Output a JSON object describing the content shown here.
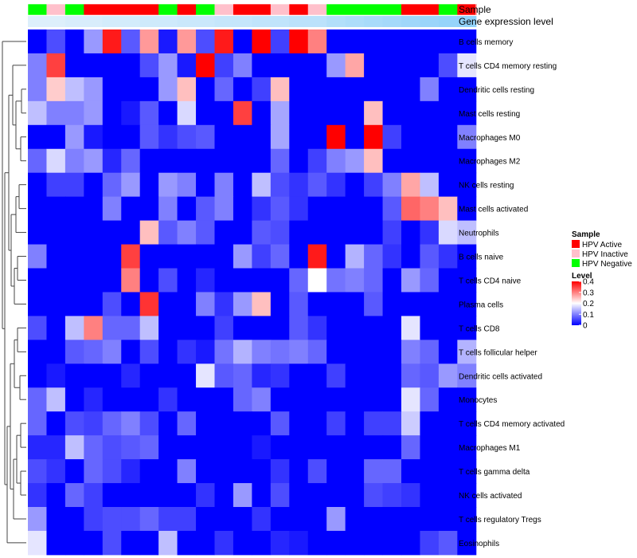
{
  "chart_data": {
    "type": "heatmap",
    "title": "",
    "annotation_labels": {
      "sample": "Sample",
      "gene": "Gene expression level"
    },
    "rows": [
      "B cells memory",
      "T cells CD4 memory resting",
      "Dendritic cells resting",
      "Mast cells resting",
      "Macrophages M0",
      "Macrophages M2",
      "NK cells resting",
      "Mast cells activated",
      "Neutrophils",
      "B cells naive",
      "T cells CD4 naive",
      "Plasma cells",
      "T cells CD8",
      "T cells follicular helper",
      "Dendritic cells activated",
      "Monocytes",
      "T cells CD4 memory activated",
      "Macrophages M1",
      "T cells gamma delta",
      "NK cells activated",
      "T cells regulatory  Tregs",
      "Eosinophils"
    ],
    "sample_annotation": [
      "HPV Negative",
      "HPV Inactive",
      "HPV Negative",
      "HPV Active",
      "HPV Active",
      "HPV Active",
      "HPV Active",
      "HPV Negative",
      "HPV Active",
      "HPV Negative",
      "HPV Inactive",
      "HPV Active",
      "HPV Active",
      "HPV Inactive",
      "HPV Active",
      "HPV Inactive",
      "HPV Negative",
      "HPV Negative",
      "HPV Negative",
      "HPV Negative",
      "HPV Active",
      "HPV Active",
      "HPV Negative",
      "HPV Active"
    ],
    "gene_expression_annotation": [
      0.1,
      0.1,
      0.15,
      0.15,
      0.2,
      0.2,
      0.25,
      0.25,
      0.3,
      0.3,
      0.35,
      0.35,
      0.4,
      0.4,
      0.45,
      0.45,
      0.55,
      0.6,
      0.65,
      0.7,
      0.75,
      0.8,
      0.85,
      0.9
    ],
    "values": [
      [
        0.0,
        0.06,
        0.0,
        0.12,
        0.38,
        0.07,
        0.28,
        0.02,
        0.28,
        0.06,
        0.38,
        0.0,
        0.4,
        0.05,
        0.4,
        0.3,
        0.0,
        0.0,
        0.0,
        0.0,
        0.0,
        0.0,
        0.0,
        0.0
      ],
      [
        0.1,
        0.35,
        0.0,
        0.0,
        0.0,
        0.0,
        0.06,
        0.12,
        0.02,
        0.4,
        0.05,
        0.1,
        0.0,
        0.0,
        0.0,
        0.0,
        0.12,
        0.27,
        0.0,
        0.0,
        0.0,
        0.0,
        0.06,
        0.18
      ],
      [
        0.1,
        0.24,
        0.15,
        0.12,
        0.0,
        0.0,
        0.0,
        0.12,
        0.25,
        0.0,
        0.08,
        0.0,
        0.05,
        0.25,
        0.0,
        0.0,
        0.0,
        0.0,
        0.0,
        0.0,
        0.0,
        0.1,
        0.0,
        0.0
      ],
      [
        0.15,
        0.1,
        0.1,
        0.12,
        0.0,
        0.02,
        0.07,
        0.0,
        0.17,
        0.0,
        0.0,
        0.35,
        0.0,
        0.13,
        0.0,
        0.0,
        0.0,
        0.0,
        0.25,
        0.0,
        0.0,
        0.0,
        0.0,
        0.0
      ],
      [
        0.0,
        0.0,
        0.12,
        0.02,
        0.0,
        0.0,
        0.07,
        0.04,
        0.06,
        0.07,
        0.0,
        0.0,
        0.0,
        0.13,
        0.0,
        0.0,
        0.4,
        0.0,
        0.4,
        0.05,
        0.0,
        0.0,
        0.0,
        0.1
      ],
      [
        0.08,
        0.17,
        0.1,
        0.12,
        0.03,
        0.08,
        0.0,
        0.0,
        0.0,
        0.0,
        0.0,
        0.0,
        0.0,
        0.08,
        0.0,
        0.05,
        0.1,
        0.12,
        0.25,
        0.0,
        0.0,
        0.0,
        0.0,
        0.0
      ],
      [
        0.0,
        0.05,
        0.05,
        0.0,
        0.08,
        0.12,
        0.0,
        0.12,
        0.1,
        0.0,
        0.1,
        0.0,
        0.15,
        0.06,
        0.04,
        0.07,
        0.04,
        0.0,
        0.05,
        0.1,
        0.27,
        0.15,
        0.0,
        0.0
      ],
      [
        0.0,
        0.0,
        0.0,
        0.0,
        0.1,
        0.0,
        0.0,
        0.1,
        0.0,
        0.07,
        0.1,
        0.0,
        0.04,
        0.07,
        0.04,
        0.0,
        0.0,
        0.0,
        0.0,
        0.07,
        0.32,
        0.3,
        0.25,
        0.0
      ],
      [
        0.0,
        0.0,
        0.0,
        0.0,
        0.0,
        0.0,
        0.25,
        0.07,
        0.1,
        0.07,
        0.0,
        0.0,
        0.07,
        0.06,
        0.0,
        0.0,
        0.0,
        0.0,
        0.0,
        0.05,
        0.0,
        0.04,
        0.17,
        0.15
      ],
      [
        0.1,
        0.0,
        0.0,
        0.0,
        0.0,
        0.35,
        0.0,
        0.0,
        0.0,
        0.0,
        0.0,
        0.12,
        0.05,
        0.08,
        0.0,
        0.38,
        0.0,
        0.14,
        0.08,
        0.04,
        0.0,
        0.07,
        0.04,
        0.0
      ],
      [
        0.0,
        0.0,
        0.0,
        0.0,
        0.0,
        0.3,
        0.0,
        0.06,
        0.0,
        0.03,
        0.0,
        0.0,
        0.0,
        0.0,
        0.08,
        0.2,
        0.09,
        0.1,
        0.08,
        0.0,
        0.12,
        0.08,
        0.0,
        0.0
      ],
      [
        0.0,
        0.0,
        0.0,
        0.0,
        0.06,
        0.0,
        0.36,
        0.0,
        0.0,
        0.1,
        0.04,
        0.12,
        0.25,
        0.0,
        0.07,
        0.0,
        0.0,
        0.0,
        0.07,
        0.0,
        0.0,
        0.0,
        0.0,
        0.0
      ],
      [
        0.06,
        0.0,
        0.15,
        0.3,
        0.08,
        0.08,
        0.15,
        0.0,
        0.0,
        0.0,
        0.05,
        0.0,
        0.0,
        0.0,
        0.07,
        0.04,
        0.0,
        0.0,
        0.0,
        0.0,
        0.18,
        0.0,
        0.0,
        0.0
      ],
      [
        0.0,
        0.0,
        0.07,
        0.08,
        0.1,
        0.0,
        0.06,
        0.0,
        0.04,
        0.02,
        0.09,
        0.14,
        0.1,
        0.09,
        0.1,
        0.08,
        0.0,
        0.0,
        0.0,
        0.0,
        0.1,
        0.08,
        0.0,
        0.14
      ],
      [
        0.0,
        0.02,
        0.0,
        0.0,
        0.0,
        0.03,
        0.0,
        0.0,
        0.0,
        0.18,
        0.07,
        0.08,
        0.03,
        0.04,
        0.0,
        0.0,
        0.05,
        0.0,
        0.0,
        0.0,
        0.08,
        0.07,
        0.12,
        0.1
      ],
      [
        0.08,
        0.15,
        0.0,
        0.03,
        0.0,
        0.0,
        0.0,
        0.04,
        0.0,
        0.0,
        0.0,
        0.08,
        0.1,
        0.0,
        0.0,
        0.0,
        0.0,
        0.0,
        0.0,
        0.0,
        0.18,
        0.08,
        0.0,
        0.0
      ],
      [
        0.08,
        0.0,
        0.06,
        0.05,
        0.08,
        0.1,
        0.06,
        0.0,
        0.08,
        0.0,
        0.0,
        0.0,
        0.0,
        0.07,
        0.0,
        0.0,
        0.05,
        0.0,
        0.05,
        0.05,
        0.16,
        0.0,
        0.0,
        0.0
      ],
      [
        0.03,
        0.03,
        0.15,
        0.08,
        0.06,
        0.07,
        0.08,
        0.0,
        0.0,
        0.0,
        0.0,
        0.0,
        0.02,
        0.0,
        0.0,
        0.0,
        0.0,
        0.0,
        0.0,
        0.0,
        0.08,
        0.0,
        0.0,
        0.0
      ],
      [
        0.06,
        0.04,
        0.0,
        0.08,
        0.06,
        0.03,
        0.0,
        0.0,
        0.1,
        0.0,
        0.0,
        0.0,
        0.0,
        0.04,
        0.0,
        0.06,
        0.0,
        0.0,
        0.08,
        0.08,
        0.0,
        0.0,
        0.0,
        0.0
      ],
      [
        0.04,
        0.0,
        0.08,
        0.05,
        0.0,
        0.0,
        0.0,
        0.0,
        0.0,
        0.04,
        0.0,
        0.12,
        0.0,
        0.06,
        0.0,
        0.0,
        0.0,
        0.0,
        0.06,
        0.05,
        0.04,
        0.0,
        0.0,
        0.0
      ],
      [
        0.12,
        0.0,
        0.0,
        0.05,
        0.06,
        0.06,
        0.08,
        0.05,
        0.05,
        0.0,
        0.0,
        0.0,
        0.04,
        0.0,
        0.0,
        0.0,
        0.12,
        0.0,
        0.0,
        0.0,
        0.0,
        0.0,
        0.0,
        0.0
      ],
      [
        0.18,
        0.0,
        0.0,
        0.0,
        0.06,
        0.0,
        0.0,
        0.15,
        0.0,
        0.0,
        0.04,
        0.0,
        0.0,
        0.03,
        0.02,
        0.0,
        0.0,
        0.0,
        0.0,
        0.0,
        0.0,
        0.05,
        0.07,
        0.0
      ]
    ],
    "legend_sample": {
      "title": "Sample",
      "entries": [
        {
          "label": "HPV Active",
          "color": "#ff0000"
        },
        {
          "label": "HPV Inactive",
          "color": "#ffc0cb"
        },
        {
          "label": "HPV Negative",
          "color": "#00ff00"
        }
      ]
    },
    "legend_level": {
      "title": "Level",
      "ticks": [
        0,
        0.1,
        0.2,
        0.3,
        0.4
      ],
      "tick_labels": [
        "0",
        "0.1",
        "0.2",
        "0.3",
        "0.4"
      ],
      "range": [
        0,
        0.4
      ]
    },
    "colors": {
      "low": "#0000ff",
      "mid": "#ffffff",
      "high": "#ff0000",
      "gene_low": "#e6f3fb",
      "gene_high": "#87cefa"
    }
  }
}
